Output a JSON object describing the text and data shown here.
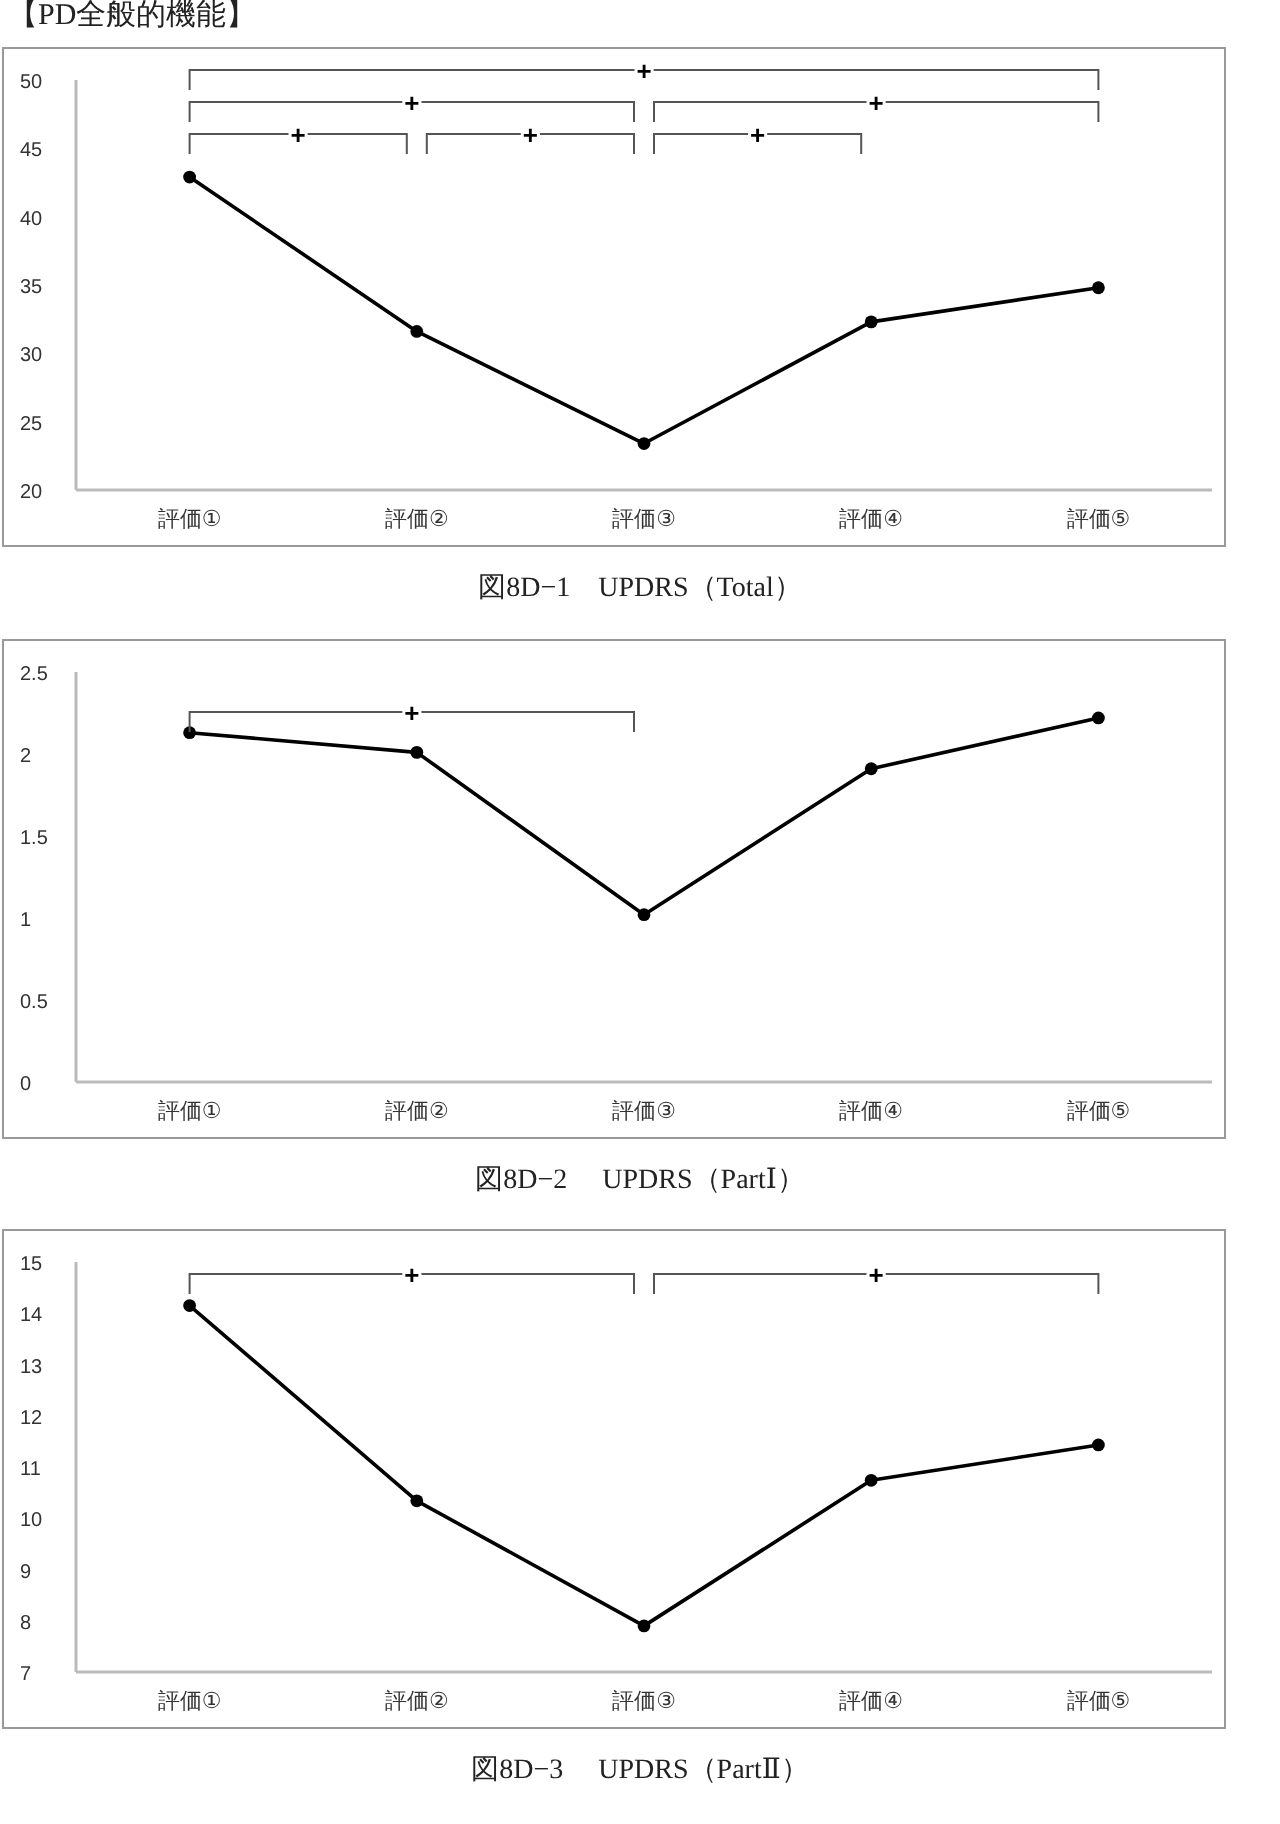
{
  "chart_data": [
    {
      "type": "line",
      "subtitle": "【PD全般的機能】",
      "title": "図8D−1　UPDRS（Total）",
      "categories": [
        "評価①",
        "評価②",
        "評価③",
        "評価④",
        "評価⑤"
      ],
      "series": [
        {
          "color": "#000000",
          "values": [
            42.9,
            31.6,
            23.4,
            32.3,
            34.8
          ]
        }
      ],
      "ylim": [
        20,
        50
      ],
      "yticks": [
        20,
        25,
        30,
        35,
        40,
        45,
        50
      ],
      "marker": "circle",
      "line_style": "solid",
      "grid": false,
      "annotations": [
        "+",
        "+",
        "+",
        "+",
        "+",
        "+"
      ]
    },
    {
      "type": "line",
      "title": "図8D−2　 UPDRS（PartⅠ）",
      "categories": [
        "評価①",
        "評価②",
        "評価③",
        "評価④",
        "評価⑤"
      ],
      "series": [
        {
          "color": "#000000",
          "values": [
            2.13,
            2.01,
            1.02,
            1.91,
            2.22
          ]
        }
      ],
      "ylim": [
        0,
        2.5
      ],
      "yticks": [
        0,
        0.5,
        1,
        1.5,
        2,
        2.5
      ],
      "marker": "circle",
      "line_style": "solid",
      "grid": false,
      "annotations": [
        "+"
      ]
    },
    {
      "type": "line",
      "title": "図8D−3　 UPDRS（PartⅡ）",
      "categories": [
        "評価①",
        "評価②",
        "評価③",
        "評価④",
        "評価⑤"
      ],
      "series": [
        {
          "color": "#000000",
          "values": [
            14.15,
            10.34,
            7.9,
            10.74,
            11.43
          ]
        }
      ],
      "ylim": [
        7,
        15
      ],
      "yticks": [
        7,
        8,
        9,
        10,
        11,
        12,
        13,
        14,
        15
      ],
      "marker": "circle",
      "line_style": "solid",
      "grid": false,
      "annotations": [
        "+",
        "+"
      ]
    }
  ]
}
